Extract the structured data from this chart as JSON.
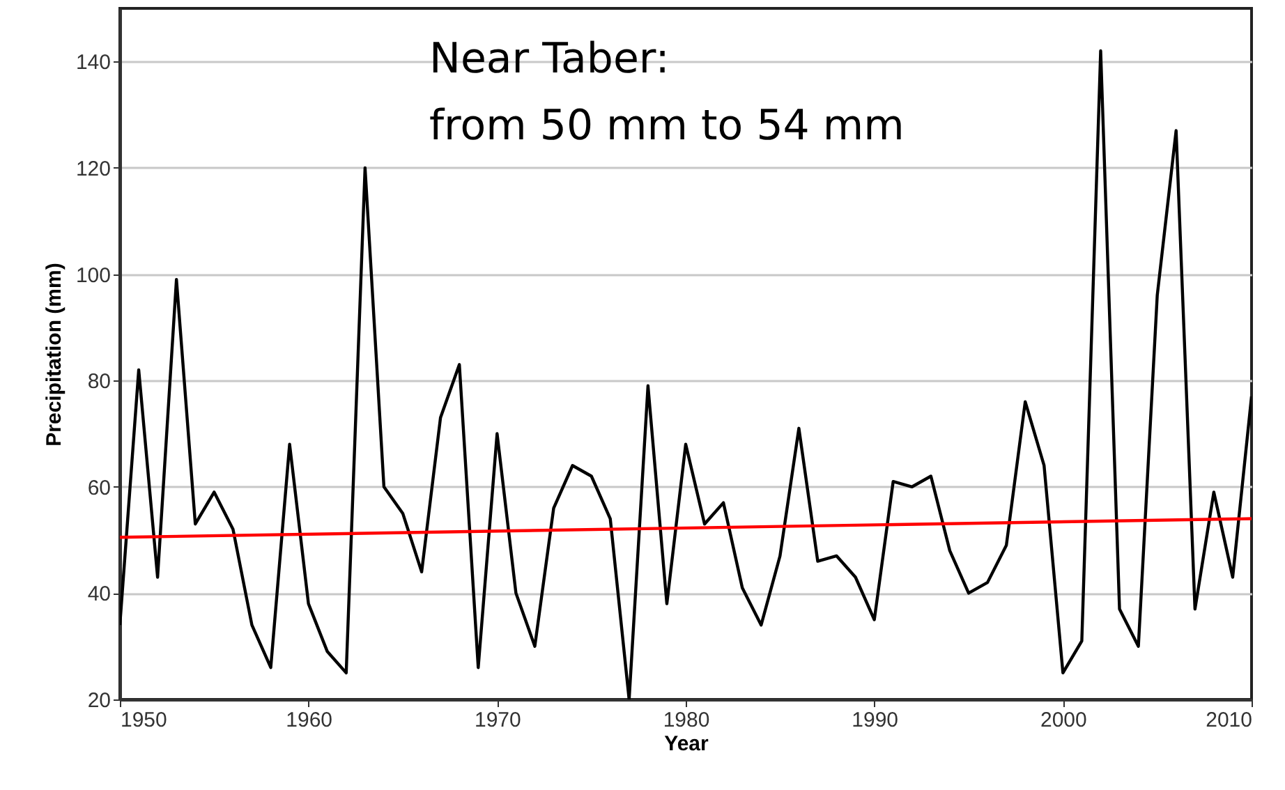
{
  "chart_data": {
    "type": "line",
    "xlabel": "Year",
    "ylabel": "Precipitation (mm)",
    "annotations": [
      "Near Taber:",
      "from 50 mm to 54 mm"
    ],
    "xlim": [
      1950,
      2010
    ],
    "xticks": [
      1950,
      1960,
      1970,
      1980,
      1990,
      2000,
      2010
    ],
    "ylim": [
      20,
      150
    ],
    "yticks": [
      20,
      40,
      60,
      80,
      100,
      120,
      140
    ],
    "grid": "y",
    "marker": "none",
    "line_style": "solid",
    "series": [
      {
        "color": "#000000",
        "x": [
          1950,
          1951,
          1952,
          1953,
          1954,
          1955,
          1956,
          1957,
          1958,
          1959,
          1960,
          1961,
          1962,
          1963,
          1964,
          1965,
          1966,
          1967,
          1968,
          1969,
          1970,
          1971,
          1972,
          1973,
          1974,
          1975,
          1976,
          1977,
          1978,
          1979,
          1980,
          1981,
          1982,
          1983,
          1984,
          1985,
          1986,
          1987,
          1988,
          1989,
          1990,
          1991,
          1992,
          1993,
          1994,
          1995,
          1996,
          1997,
          1998,
          1999,
          2000,
          2001,
          2002,
          2003,
          2004,
          2005,
          2006,
          2007,
          2008,
          2009,
          2010
        ],
        "values": [
          34,
          82,
          43,
          99,
          53,
          59,
          52,
          34,
          26,
          68,
          38,
          29,
          25,
          120,
          60,
          55,
          44,
          73,
          83,
          26,
          70,
          40,
          30,
          56,
          64,
          62,
          54,
          20,
          79,
          38,
          68,
          53,
          57,
          41,
          34,
          47,
          71,
          46,
          47,
          43,
          35,
          61,
          60,
          62,
          48,
          40,
          42,
          49,
          76,
          64,
          25,
          31,
          142,
          37,
          30,
          96,
          127,
          37,
          59,
          43,
          77
        ]
      },
      {
        "color": "#ff0000",
        "x": [
          1950,
          2010
        ],
        "values": [
          50.5,
          54
        ]
      }
    ]
  }
}
